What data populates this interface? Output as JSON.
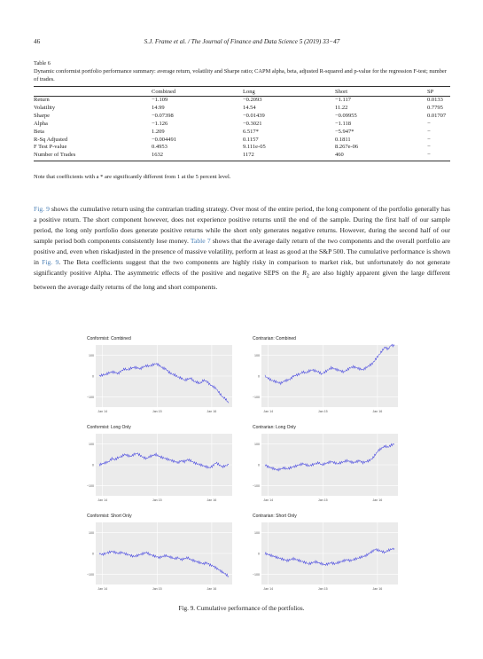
{
  "header": {
    "page_number": "46",
    "running_head": "S.J. Frame et al. / The Journal of Finance and Data Science 5 (2019) 33−47"
  },
  "table": {
    "label": "Table 6",
    "caption": "Dynamic conformist portfolio performance summary: average return, volatility and Sharpe ratio; CAPM alpha, beta, adjusted R-squared and p-value for the regression F-test; number of trades.",
    "columns": [
      "",
      "Combined",
      "Long",
      "Short",
      "SP"
    ],
    "rows": [
      [
        "Return",
        "−1.109",
        "−0.2093",
        "−1.117",
        "0.0133"
      ],
      [
        "Volatility",
        "14.99",
        "14.54",
        "11.22",
        "0.7795"
      ],
      [
        "Sharpe",
        "−0.07398",
        "−0.01439",
        "−0.09955",
        "0.01707"
      ],
      [
        "Alpha",
        "−1.126",
        "−0.3021",
        "−1.118",
        "−"
      ],
      [
        "Beta",
        "1.209",
        "6.517*",
        "−5.947*",
        "−"
      ],
      [
        "R-Sq Adjusted",
        "−0.004491",
        "0.1157",
        "0.1811",
        "−"
      ],
      [
        "F Test P-value",
        "0.4953",
        "9.111e-05",
        "8.267e-06",
        "−"
      ],
      [
        "Number of Trades",
        "1632",
        "1172",
        "460",
        "−"
      ]
    ],
    "note": "Note that coefficients with a * are significantly different from 1 at the 5 percent level."
  },
  "body": {
    "ref_fig9": "Fig. 9",
    "ref_table7": "Table 7",
    "ref_r": "R",
    "ref_r_sub": "2",
    "part1": " shows the cumulative return using the contrarian trading strategy. Over most of the entire period, the long component of the portfolio generally has a positive return. The short component however, does not experience positive returns until the end of the sample. During the first half of our sample period, the long only portfolio does generate positive returns while the short only generates negative returns. However, during the second half of our sample period both components consistently lose money. ",
    "part2": " shows that the average daily return of the two components and the overall portfolio are positive and, even when riskadjusted in the presence of massive volatility, perform at least as good at the S&P 500. The cumulative performance is shown in ",
    "part3": ". The Beta coefficients suggest that the two components are highly risky in comparison to market risk, but unfortunately do not generate significantly positive Alpha. The asymmetric effects of the positive and negative SEPS on the ",
    "part4": " are also highly apparent given the large different between the average daily returns of the long and short components."
  },
  "figure": {
    "caption": "Fig. 9.  Cumulative performance of the portfolios.",
    "line_color": "#4a4adf",
    "panel_bg": "#ebebeb",
    "grid_color": "#ffffff"
  },
  "chart_data": [
    {
      "type": "line",
      "title": "Conformist: Combined",
      "ylim": [
        -150,
        150
      ],
      "yticks": [
        "100",
        "0",
        "−100"
      ],
      "xticks": [
        "Jan 14",
        "Jan 15",
        "Jan 16"
      ],
      "series": [
        {
          "values": [
            0,
            5,
            8,
            15,
            20,
            18,
            12,
            25,
            35,
            30,
            38,
            42,
            40,
            35,
            45,
            50,
            48,
            55,
            60,
            52,
            40,
            35,
            20,
            10,
            5,
            -5,
            -10,
            -20,
            -15,
            -10,
            -25,
            -30,
            -35,
            -20,
            -25,
            -40,
            -50,
            -60,
            -80,
            -100,
            -110,
            -130
          ]
        }
      ]
    },
    {
      "type": "line",
      "title": "Contrarian: Combined",
      "ylim": [
        -150,
        150
      ],
      "yticks": [
        "100",
        "0",
        "−100"
      ],
      "xticks": [
        "Jan 14",
        "Jan 15",
        "Jan 16"
      ],
      "series": [
        {
          "values": [
            0,
            -10,
            -20,
            -25,
            -30,
            -35,
            -25,
            -20,
            -15,
            0,
            5,
            10,
            20,
            15,
            25,
            30,
            25,
            20,
            10,
            20,
            30,
            40,
            35,
            30,
            25,
            20,
            30,
            40,
            45,
            40,
            35,
            30,
            40,
            50,
            60,
            80,
            100,
            120,
            140,
            130,
            150,
            145
          ]
        }
      ]
    },
    {
      "type": "line",
      "title": "Conformist: Long Only",
      "ylim": [
        -150,
        150
      ],
      "yticks": [
        "100",
        "0",
        "−100"
      ],
      "xticks": [
        "Jan 14",
        "Jan 15",
        "Jan 16"
      ],
      "series": [
        {
          "values": [
            0,
            5,
            10,
            15,
            30,
            25,
            35,
            40,
            50,
            45,
            40,
            50,
            55,
            45,
            35,
            30,
            40,
            45,
            50,
            40,
            35,
            30,
            25,
            20,
            15,
            10,
            20,
            15,
            25,
            20,
            10,
            5,
            0,
            -5,
            -10,
            -15,
            -5,
            10,
            0,
            -10,
            -5,
            0
          ]
        }
      ]
    },
    {
      "type": "line",
      "title": "Contrarian: Long Only",
      "ylim": [
        -150,
        150
      ],
      "yticks": [
        "100",
        "0",
        "−100"
      ],
      "xticks": [
        "Jan 14",
        "Jan 15",
        "Jan 16"
      ],
      "series": [
        {
          "values": [
            0,
            -10,
            -15,
            -20,
            -25,
            -20,
            -15,
            -20,
            -15,
            -10,
            -5,
            0,
            5,
            0,
            -5,
            0,
            5,
            10,
            0,
            5,
            10,
            15,
            10,
            5,
            10,
            15,
            20,
            15,
            10,
            15,
            20,
            10,
            15,
            20,
            30,
            50,
            70,
            80,
            90,
            85,
            95,
            100
          ]
        }
      ]
    },
    {
      "type": "line",
      "title": "Conformist: Short Only",
      "ylim": [
        -150,
        150
      ],
      "yticks": [
        "100",
        "0",
        "−100"
      ],
      "xticks": [
        "Jan 14",
        "Jan 15",
        "Jan 16"
      ],
      "series": [
        {
          "values": [
            0,
            -5,
            0,
            5,
            10,
            5,
            0,
            5,
            0,
            -5,
            -10,
            -15,
            -10,
            -5,
            0,
            5,
            -5,
            -10,
            -15,
            -20,
            -15,
            -10,
            -15,
            -20,
            -25,
            -20,
            -30,
            -25,
            -20,
            -30,
            -35,
            -40,
            -45,
            -50,
            -45,
            -55,
            -60,
            -70,
            -80,
            -90,
            -100,
            -110
          ]
        }
      ]
    },
    {
      "type": "line",
      "title": "Contrarian: Short Only",
      "ylim": [
        -150,
        150
      ],
      "yticks": [
        "100",
        "0",
        "−100"
      ],
      "xticks": [
        "Jan 14",
        "Jan 15",
        "Jan 16"
      ],
      "series": [
        {
          "values": [
            0,
            -5,
            -10,
            -15,
            -20,
            -25,
            -30,
            -35,
            -30,
            -25,
            -30,
            -35,
            -40,
            -45,
            -50,
            -45,
            -40,
            -45,
            -50,
            -55,
            -50,
            -45,
            -50,
            -45,
            -40,
            -35,
            -30,
            -35,
            -30,
            -25,
            -20,
            -15,
            -10,
            0,
            10,
            20,
            15,
            10,
            5,
            15,
            20,
            25
          ]
        }
      ]
    }
  ]
}
